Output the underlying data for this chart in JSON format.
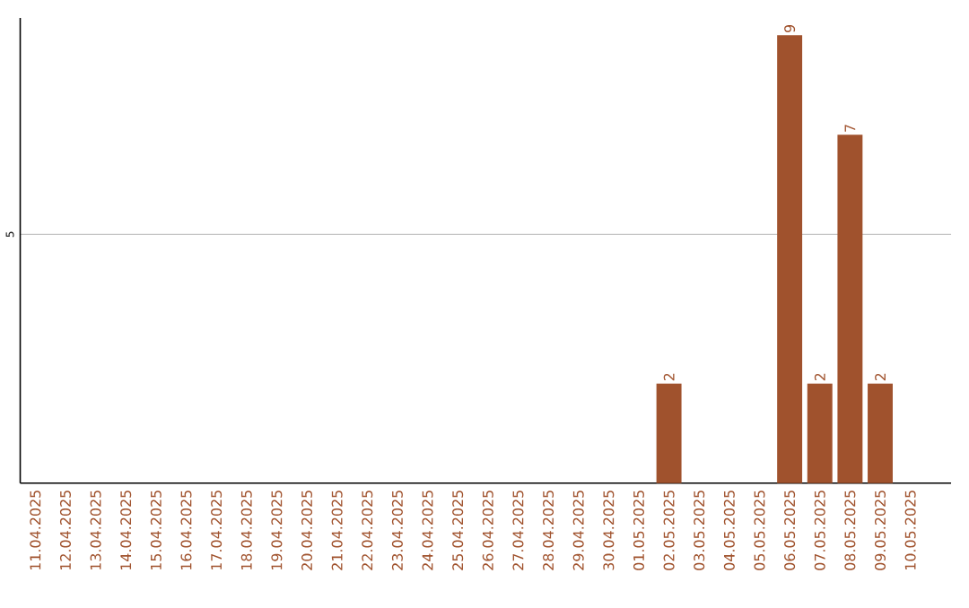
{
  "chart_data": {
    "type": "bar",
    "categories": [
      "11.04.2025",
      "12.04.2025",
      "13.04.2025",
      "14.04.2025",
      "15.04.2025",
      "16.04.2025",
      "17.04.2025",
      "18.04.2025",
      "19.04.2025",
      "20.04.2025",
      "21.04.2025",
      "22.04.2025",
      "23.04.2025",
      "24.04.2025",
      "25.04.2025",
      "26.04.2025",
      "27.04.2025",
      "28.04.2025",
      "29.04.2025",
      "30.04.2025",
      "01.05.2025",
      "02.05.2025",
      "03.05.2025",
      "04.05.2025",
      "05.05.2025",
      "06.05.2025",
      "07.05.2025",
      "08.05.2025",
      "09.05.2025",
      "10.05.2025"
    ],
    "values": [
      null,
      null,
      null,
      null,
      null,
      null,
      null,
      null,
      null,
      null,
      null,
      null,
      null,
      null,
      null,
      null,
      null,
      null,
      null,
      null,
      null,
      2,
      null,
      null,
      null,
      9,
      2,
      7,
      2,
      null
    ],
    "data_labels": true,
    "color": "#a0522d",
    "ylim": [
      0,
      9.35
    ],
    "yticks": [
      5
    ],
    "grid": "y"
  }
}
